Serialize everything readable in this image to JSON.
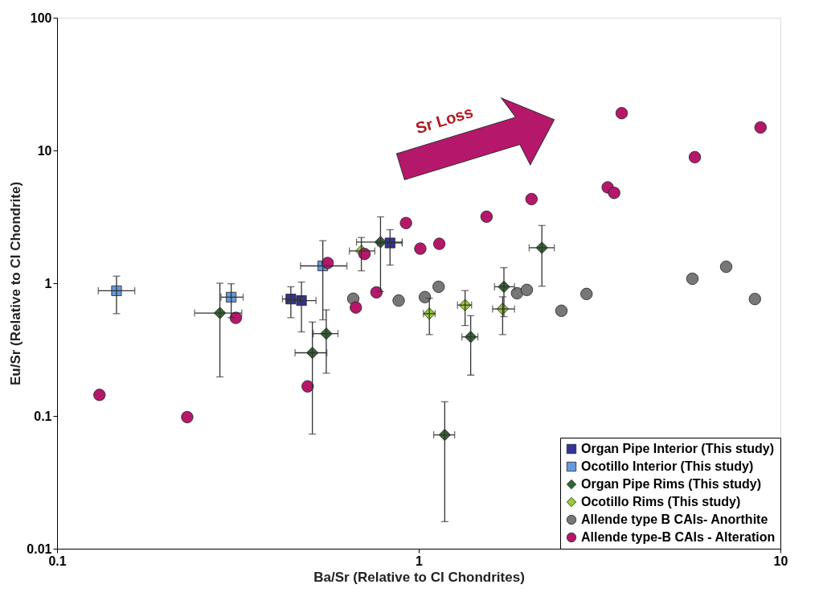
{
  "chart_data": {
    "type": "scatter",
    "xlabel": "Ba/Sr (Relative to CI Chondrites)",
    "ylabel": "Eu/Sr (Relative to CI Chondrite)",
    "log": "xy",
    "xlim": [
      0.1,
      10
    ],
    "xticks": [
      0.1,
      1,
      10
    ],
    "ylim": [
      0.01,
      100
    ],
    "yticks": [
      0.01,
      0.1,
      1,
      10,
      100
    ],
    "grid": false,
    "legend": "bottom right",
    "annotations": [
      "Sr Loss"
    ],
    "series": [
      {
        "name": "Organ Pipe Interior (This study)",
        "color": "#333399",
        "marker": "square",
        "x": [
          0.443,
          0.474,
          0.833
        ],
        "values": [
          0.76,
          0.74,
          2.01
        ],
        "errors": [
          [
            0.55,
            0.94
          ],
          [
            0.43,
            1.02
          ],
          [
            1.37,
            2.53
          ]
        ],
        "xerrors": [
          [
            0.42,
            0.47
          ],
          [
            0.43,
            0.52
          ],
          [
            0.77,
            0.9
          ]
        ]
      },
      {
        "name": "Ocotillo Interior (This study)",
        "color": "#6699dd",
        "marker": "square",
        "x": [
          0.146,
          0.303,
          0.543
        ],
        "values": [
          0.877,
          0.785,
          1.35
        ],
        "errors": [
          [
            0.59,
            1.13
          ],
          [
            0.55,
            0.99
          ],
          [
            0.53,
            2.09
          ]
        ],
        "xerrors": [
          [
            0.13,
            0.164
          ],
          [
            0.284,
            0.327
          ],
          [
            0.471,
            0.633
          ]
        ]
      },
      {
        "name": "Organ Pipe Rims (This study)",
        "color": "#336633",
        "marker": "diamond",
        "x": [
          0.282,
          0.508,
          0.555,
          0.784,
          1.392,
          1.72,
          2.19,
          1.18
        ],
        "values": [
          0.596,
          0.299,
          0.417,
          2.04,
          0.394,
          0.94,
          1.85,
          0.072
        ],
        "errors": [
          [
            0.197,
            1.0
          ],
          [
            0.073,
            0.51
          ],
          [
            0.21,
            0.63
          ],
          [
            0.865,
            3.16
          ],
          [
            0.203,
            0.57
          ],
          [
            0.56,
            1.31
          ],
          [
            0.95,
            2.72
          ],
          [
            0.016,
            0.128
          ]
        ],
        "xerrors": [
          [
            0.24,
            0.324
          ],
          [
            0.455,
            0.557
          ],
          [
            0.511,
            0.598
          ],
          [
            0.673,
            0.9
          ],
          [
            1.316,
            1.457
          ],
          [
            1.62,
            1.84
          ],
          [
            2.02,
            2.37
          ],
          [
            1.1,
            1.257
          ]
        ]
      },
      {
        "name": "Ocotillo Rims (This study)",
        "color": "#99cc33",
        "marker": "diamond",
        "x": [
          0.694,
          1.07,
          1.343,
          1.706
        ],
        "values": [
          1.75,
          0.59,
          0.684,
          0.64
        ],
        "errors": [
          [
            1.24,
            2.21
          ],
          [
            0.41,
            0.77
          ],
          [
            0.48,
            0.88
          ],
          [
            0.41,
            0.79
          ]
        ],
        "xerrors": [
          [
            0.643,
            0.756
          ],
          [
            1.03,
            1.11
          ],
          [
            1.28,
            1.4
          ],
          [
            1.6,
            1.84
          ]
        ]
      },
      {
        "name": "Allende type B CAIs- Anorthite",
        "color": "#777777",
        "marker": "circle",
        "x": [
          0.659,
          0.88,
          1.04,
          1.135,
          1.87,
          1.99,
          2.48,
          2.91,
          5.71,
          7.08,
          8.5
        ],
        "values": [
          0.764,
          0.74,
          0.786,
          0.94,
          0.84,
          0.89,
          0.62,
          0.83,
          1.08,
          1.33,
          0.76
        ]
      },
      {
        "name": "Allende type-B CAIs - Alteration",
        "color": "#b5176b",
        "marker": "circle",
        "x": [
          0.131,
          0.229,
          0.312,
          0.493,
          0.56,
          0.67,
          0.708,
          0.764,
          0.922,
          1.01,
          1.14,
          1.54,
          2.05,
          3.64,
          8.81,
          5.8,
          3.33,
          3.47
        ],
        "values": [
          0.144,
          0.098,
          0.548,
          0.167,
          1.42,
          0.656,
          1.66,
          0.853,
          2.84,
          1.82,
          1.98,
          3.17,
          4.3,
          19.1,
          14.9,
          8.9,
          5.27,
          4.79
        ]
      }
    ]
  }
}
